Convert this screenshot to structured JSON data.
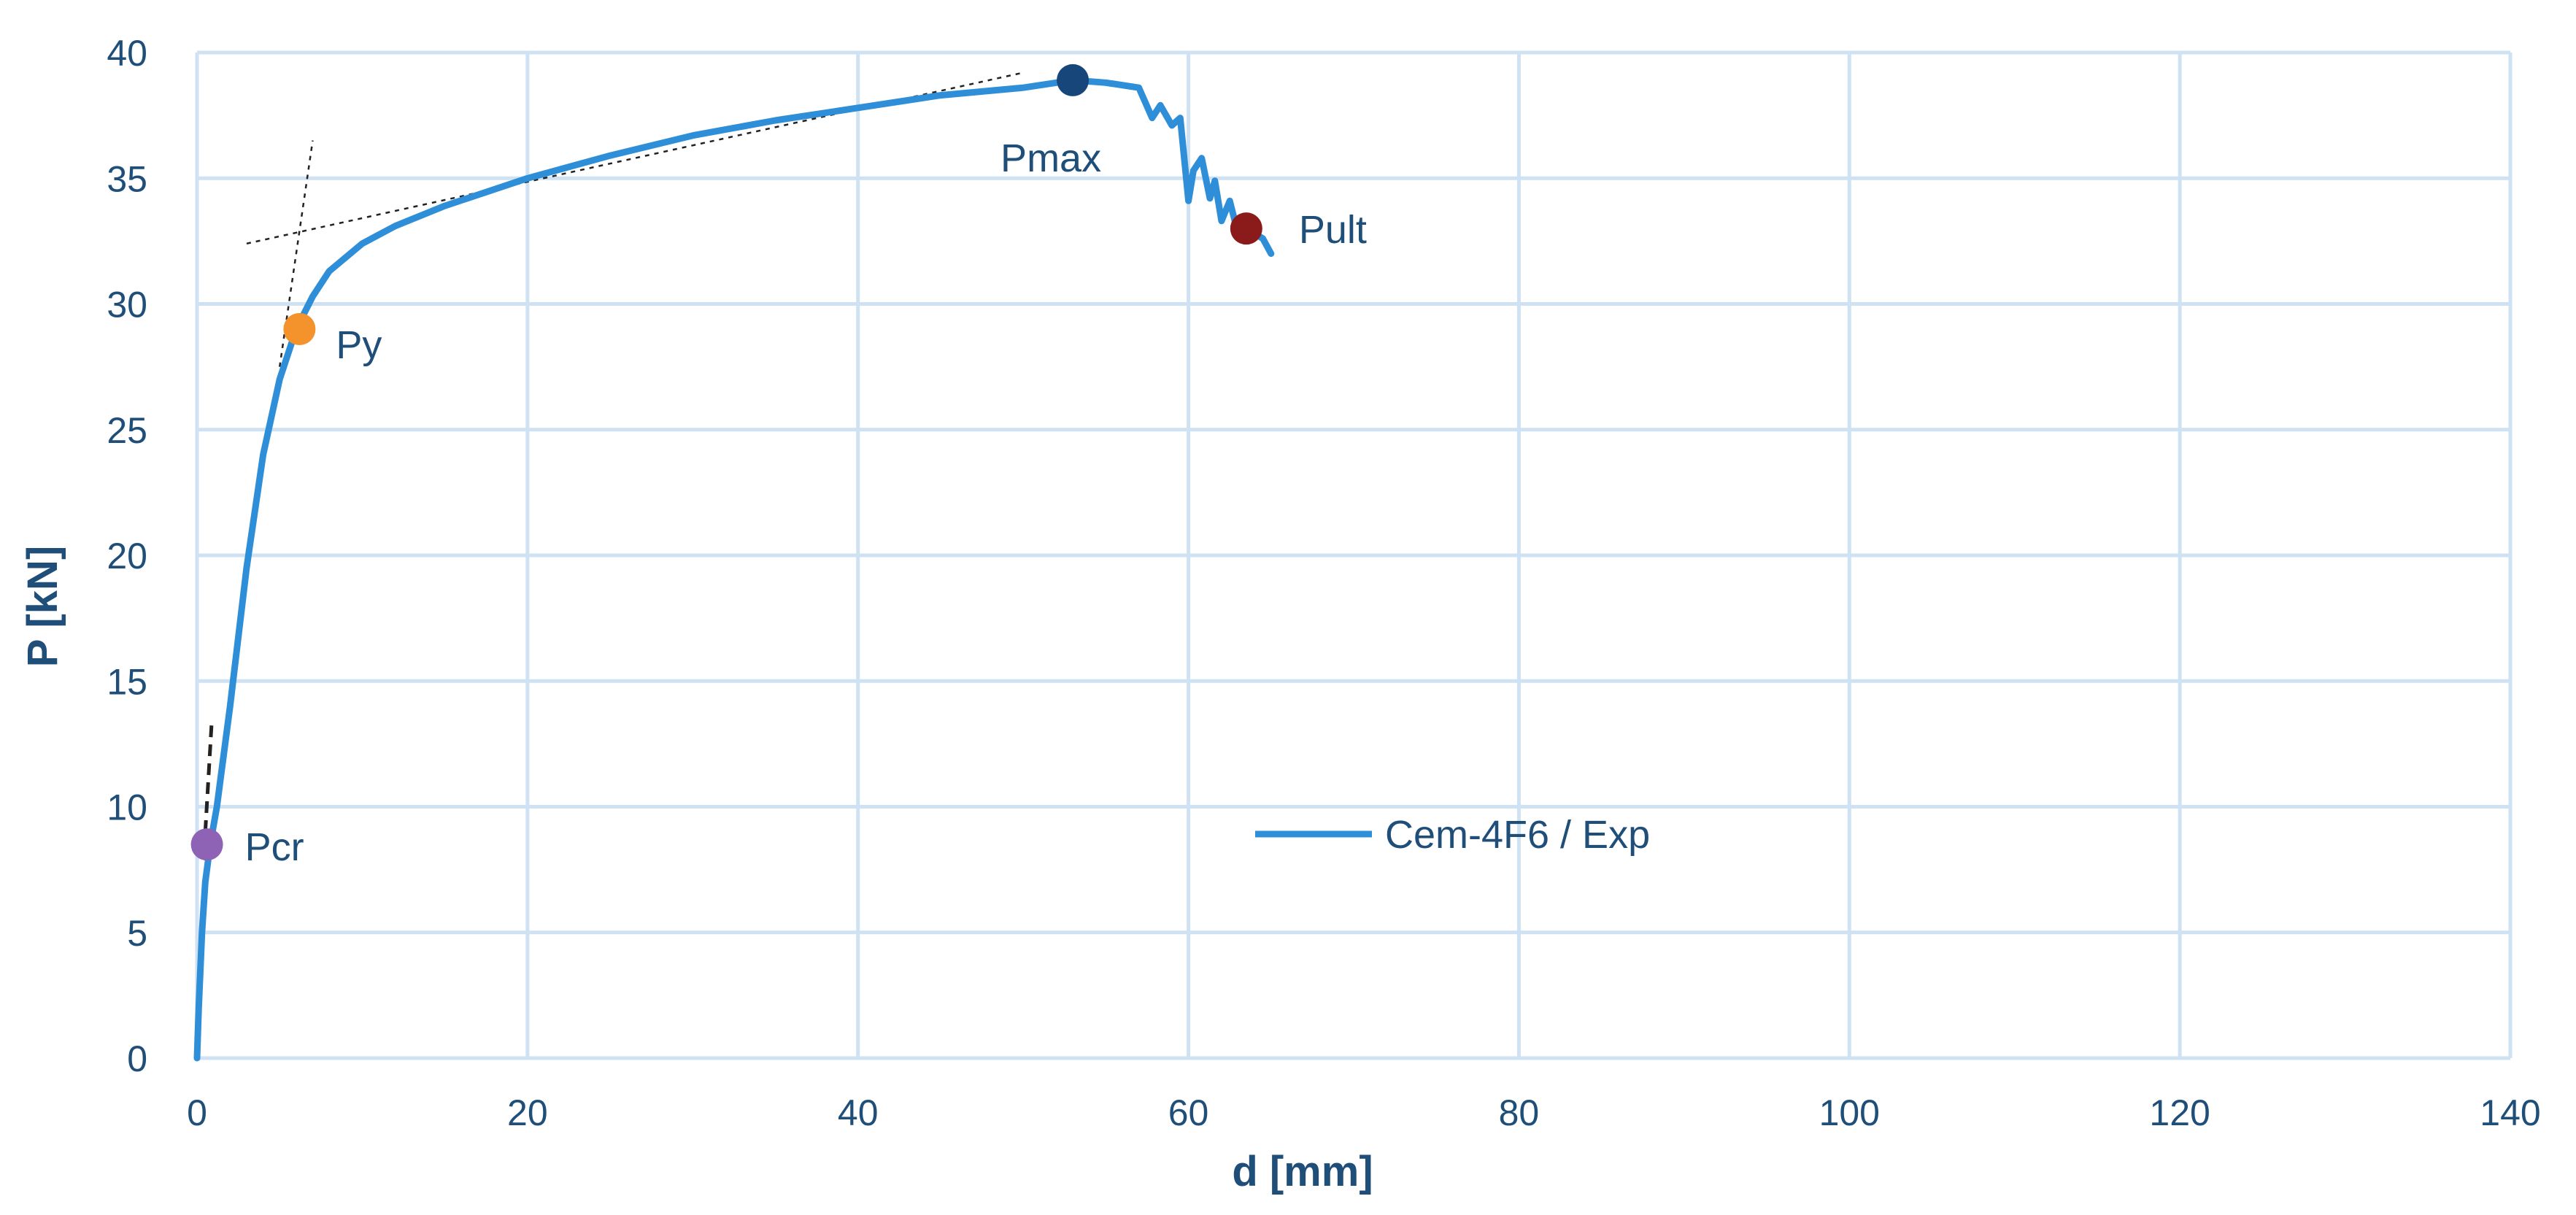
{
  "chart_data": {
    "type": "line",
    "title": "",
    "xlabel": "d [mm]",
    "ylabel": "P [kN]",
    "xlim": [
      0,
      140
    ],
    "ylim": [
      0,
      40
    ],
    "xticks": [
      0,
      20,
      40,
      60,
      80,
      100,
      120,
      140
    ],
    "yticks": [
      0,
      5,
      10,
      15,
      20,
      25,
      30,
      35,
      40
    ],
    "grid": true,
    "legend_position": "center-right",
    "colors": {
      "series": "#2e8fd8",
      "grid": "#cfe2f3",
      "text": "#1f4e79",
      "pcr": "#8e63b5",
      "py": "#f4922b",
      "pmax": "#17467a",
      "pult": "#8b1a1a"
    },
    "series": [
      {
        "name": "Cem-4F6 / Exp",
        "x": [
          0,
          0.1,
          0.3,
          0.5,
          0.8,
          1.2,
          2,
          3,
          4,
          5,
          6,
          7,
          8,
          10,
          12,
          15,
          20,
          25,
          30,
          35,
          40,
          45,
          50,
          53,
          55,
          57,
          57.8,
          58.3,
          59,
          59.5,
          60,
          60.3,
          60.8,
          61.3,
          61.6,
          62,
          62.5,
          63,
          63.5,
          64,
          64.5,
          65
        ],
        "y": [
          0,
          2,
          5,
          7,
          8.5,
          10,
          14,
          19.5,
          24,
          27,
          29,
          30.3,
          31.3,
          32.4,
          33.1,
          33.9,
          35,
          35.9,
          36.7,
          37.3,
          37.8,
          38.3,
          38.6,
          38.9,
          38.8,
          38.6,
          37.4,
          37.9,
          37.1,
          37.4,
          34.1,
          35.3,
          35.8,
          34.2,
          34.9,
          33.3,
          34.1,
          32.8,
          33.1,
          32.8,
          32.6,
          32
        ]
      }
    ],
    "annotations": [
      {
        "label": "Pcr",
        "x": 0.6,
        "y": 8.5
      },
      {
        "label": "Py",
        "x": 6.2,
        "y": 29
      },
      {
        "label": "Pmax",
        "x": 53,
        "y": 38.9
      },
      {
        "label": "Pult",
        "x": 63.5,
        "y": 33
      }
    ],
    "guide_lines": [
      {
        "style": "dashed",
        "x": [
          0.5,
          0.9
        ],
        "y": [
          9,
          13.5
        ]
      },
      {
        "style": "dotted",
        "x": [
          3,
          50
        ],
        "y": [
          32.4,
          39.2
        ]
      },
      {
        "style": "dotted",
        "x": [
          5,
          7
        ],
        "y": [
          27.5,
          36.5
        ]
      }
    ]
  }
}
